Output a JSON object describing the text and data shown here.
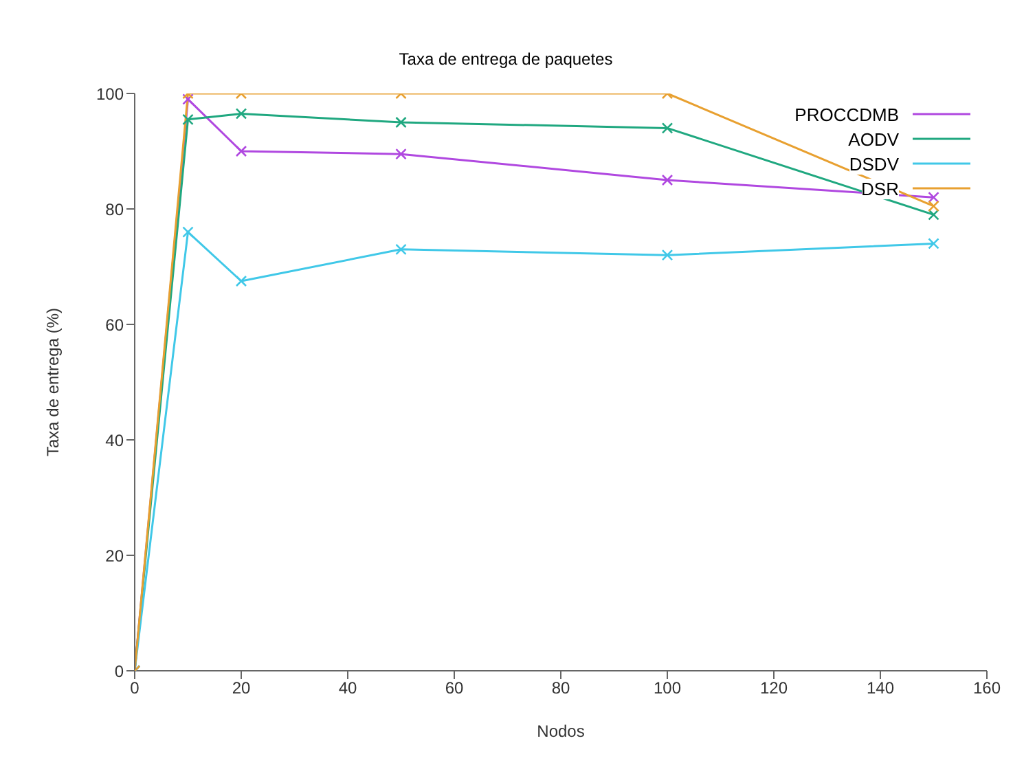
{
  "chart_data": {
    "type": "line",
    "title": "Taxa de entrega de paquetes",
    "xlabel": "Nodos",
    "ylabel": "Taxa de entrega (%)",
    "x": [
      0,
      10,
      20,
      50,
      100,
      150
    ],
    "series": [
      {
        "name": "PROCCDMB",
        "color": "#b048e0",
        "values": [
          0,
          99,
          90,
          89.5,
          85,
          82
        ]
      },
      {
        "name": "AODV",
        "color": "#20a880",
        "values": [
          0,
          95.5,
          96.5,
          95,
          94,
          79
        ]
      },
      {
        "name": "DSDV",
        "color": "#40c8e8",
        "values": [
          0,
          76,
          67.5,
          73,
          72,
          74
        ]
      },
      {
        "name": "DSR",
        "color": "#e8a030",
        "values": [
          0,
          100,
          100,
          100,
          100,
          80.5
        ]
      }
    ],
    "xlim": [
      0,
      160
    ],
    "xticks": [
      0,
      20,
      40,
      60,
      80,
      100,
      120,
      140,
      160
    ],
    "ylim": [
      0,
      100
    ],
    "yticks": [
      0,
      20,
      40,
      60,
      80,
      100
    ],
    "grid": false,
    "legend": "top right",
    "marker": "cross",
    "line_style": "solid"
  }
}
